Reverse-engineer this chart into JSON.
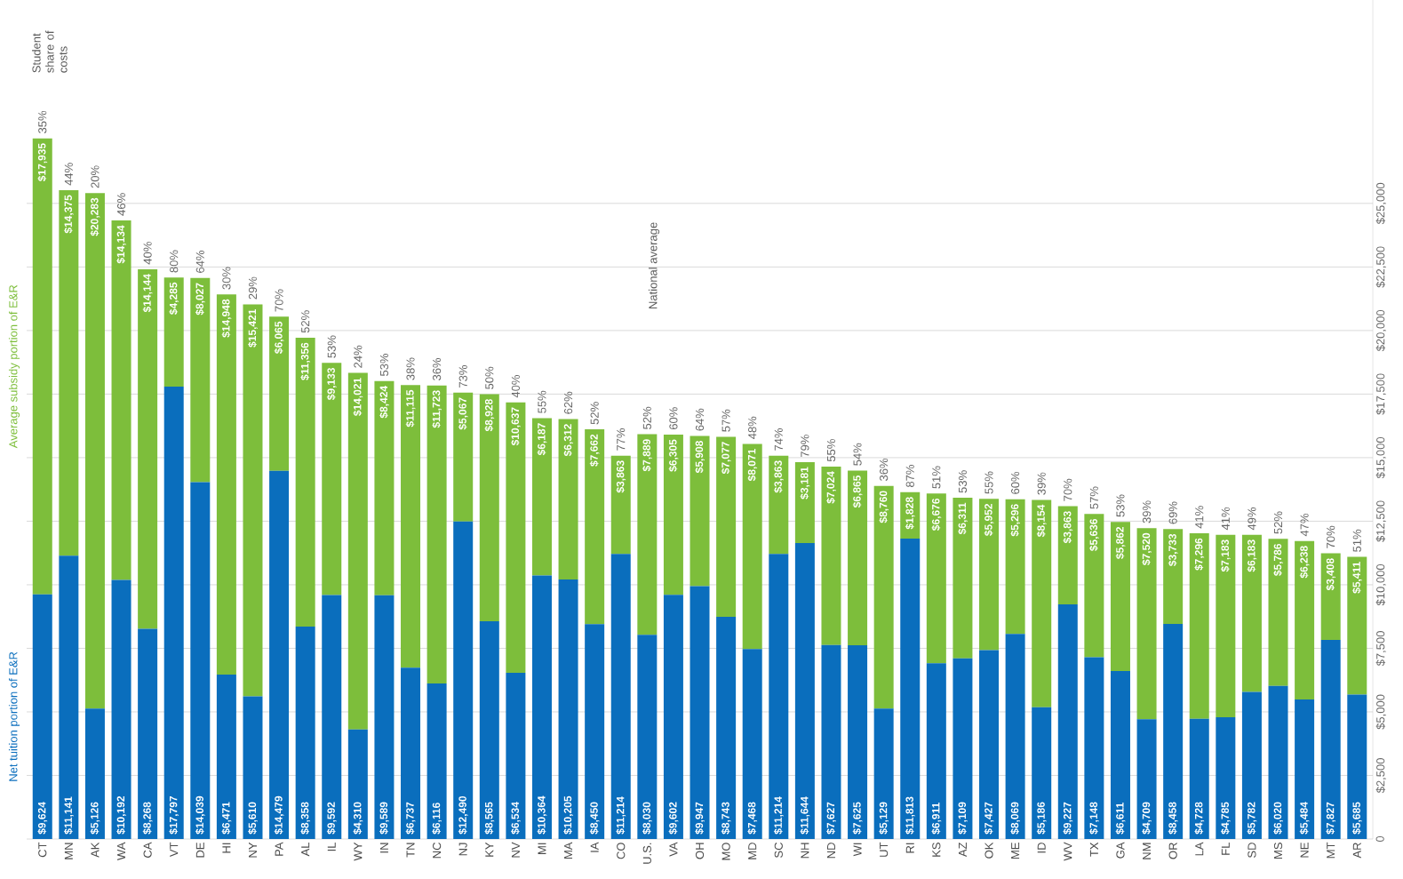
{
  "chart_data": {
    "type": "bar",
    "stacked": true,
    "grid": "y",
    "categories": [
      "CT",
      "MN",
      "AK",
      "WA",
      "CA",
      "VT",
      "DE",
      "HI",
      "NY",
      "PA",
      "AL",
      "IL",
      "WY",
      "IN",
      "TN",
      "NC",
      "NJ",
      "KY",
      "NV",
      "MI",
      "MA",
      "IA",
      "CO",
      "U.S.",
      "VA",
      "OH",
      "MO",
      "MD",
      "SC",
      "NH",
      "ND",
      "WI",
      "UT",
      "RI",
      "KS",
      "AZ",
      "OK",
      "ME",
      "ID",
      "WV",
      "TX",
      "GA",
      "NM",
      "OR",
      "LA",
      "FL",
      "SD",
      "MS",
      "NE",
      "MT",
      "AR"
    ],
    "series": [
      {
        "name": "Net tuition portion of E&R",
        "color": "#0a6ebd",
        "values": [
          9624,
          11141,
          5126,
          10192,
          8268,
          17797,
          14039,
          6471,
          5610,
          14479,
          8358,
          9592,
          4310,
          9589,
          6737,
          6116,
          12490,
          8565,
          6534,
          10364,
          10205,
          8450,
          11214,
          8030,
          9602,
          9947,
          8743,
          7468,
          11214,
          11644,
          7627,
          7625,
          5129,
          11813,
          6911,
          7109,
          7427,
          8069,
          5186,
          9227,
          7148,
          6611,
          4709,
          8458,
          4728,
          4785,
          5782,
          6020,
          5484,
          7827,
          5685
        ],
        "value_labels": [
          "$9,624",
          "$11,141",
          "$5,126",
          "$10,192",
          "$8,268",
          "$17,797",
          "$14,039",
          "$6,471",
          "$5,610",
          "$14,479",
          "$8,358",
          "$9,592",
          "$4,310",
          "$9,589",
          "$6,737",
          "$6,116",
          "$12,490",
          "$8,565",
          "$6,534",
          "$10,364",
          "$10,205",
          "$8,450",
          "$11,214",
          "$8,030",
          "$9,602",
          "$9,947",
          "$8,743",
          "$7,468",
          "$11,214",
          "$11,644",
          "$7,627",
          "$7,625",
          "$5,129",
          "$11,813",
          "$6,911",
          "$7,109",
          "$7,427",
          "$8,069",
          "$5,186",
          "$9,227",
          "$7,148",
          "$6,611",
          "$4,709",
          "$8,458",
          "$4,728",
          "$4,785",
          "$5,782",
          "$6,020",
          "$5,484",
          "$7,827",
          "$5,685"
        ]
      },
      {
        "name": "Average subsidy portion of E&R",
        "color": "#7dbe3b",
        "values": [
          17935,
          14375,
          20283,
          14134,
          14144,
          4285,
          8027,
          14948,
          15421,
          6065,
          11356,
          9133,
          14021,
          8424,
          11115,
          11723,
          5067,
          8928,
          10637,
          6187,
          6312,
          7662,
          3863,
          7889,
          6305,
          5908,
          7077,
          8071,
          3863,
          3181,
          7024,
          6865,
          8760,
          1828,
          6676,
          6311,
          5952,
          5296,
          8154,
          3863,
          5636,
          5862,
          7520,
          3733,
          7296,
          7183,
          6183,
          5786,
          6238,
          3408,
          5411
        ],
        "value_labels": [
          "$17,935",
          "$14,375",
          "$20,283",
          "$14,134",
          "$14,144",
          "$4,285",
          "$8,027",
          "$14,948",
          "$15,421",
          "$6,065",
          "$11,356",
          "$9,133",
          "$14,021",
          "$8,424",
          "$11,115",
          "$11,723",
          "$5,067",
          "$8,928",
          "$10,637",
          "$6,187",
          "$6,312",
          "$7,662",
          "$3,863",
          "$7,889",
          "$6,305",
          "$5,908",
          "$7,077",
          "$8,071",
          "$3,863",
          "$3,181",
          "$7,024",
          "$6,865",
          "$8,760",
          "$1,828",
          "$6,676",
          "$6,311",
          "$5,952",
          "$5,296",
          "$8,154",
          "$3,863",
          "$5,636",
          "$5,862",
          "$7,520",
          "$3,733",
          "$7,296",
          "$7,183",
          "$6,183",
          "$5,786",
          "$6,238",
          "$3,408",
          "$5,411"
        ]
      }
    ],
    "ylim": [
      0,
      33000
    ],
    "yticks": [
      0,
      {
        "value": 2500,
        "label": "$2,500"
      },
      {
        "value": 5000,
        "label": "$5,000"
      },
      {
        "value": 7500,
        "label": "$7,500"
      },
      {
        "value": 10000,
        "label": "$10,000"
      },
      {
        "value": 12500,
        "label": "$12,500"
      },
      {
        "value": 15000,
        "label": "$15,000"
      },
      {
        "value": 17500,
        "label": "$17,500"
      },
      {
        "value": 20000,
        "label": "$20,000"
      },
      {
        "value": 22500,
        "label": "$22,500"
      },
      {
        "value": 25000,
        "label": "$25,000"
      }
    ],
    "annotations": [
      "Student share of costs",
      "National average",
      {
        "text": "35%",
        "x": "CT",
        "y": 27559
      },
      {
        "text": "44%",
        "x": "MN",
        "y": 25516
      },
      {
        "text": "20%",
        "x": "AK",
        "y": 25409
      },
      {
        "text": "46%",
        "x": "WA",
        "y": 24326
      },
      {
        "text": "40%",
        "x": "CA",
        "y": 22412
      },
      {
        "text": "80%",
        "x": "VT",
        "y": 22082
      },
      {
        "text": "64%",
        "x": "DE",
        "y": 22066
      },
      {
        "text": "30%",
        "x": "HI",
        "y": 21419
      },
      {
        "text": "29%",
        "x": "NY",
        "y": 21031
      },
      {
        "text": "70%",
        "x": "PA",
        "y": 20544
      },
      {
        "text": "52%",
        "x": "AL",
        "y": 19714
      },
      {
        "text": "53%",
        "x": "IL",
        "y": 18725
      },
      {
        "text": "24%",
        "x": "WY",
        "y": 18331
      },
      {
        "text": "53%",
        "x": "IN",
        "y": 18013
      },
      {
        "text": "38%",
        "x": "TN",
        "y": 17852
      },
      {
        "text": "36%",
        "x": "NC",
        "y": 17839
      },
      {
        "text": "73%",
        "x": "NJ",
        "y": 17557
      },
      {
        "text": "50%",
        "x": "KY",
        "y": 17493
      },
      {
        "text": "40%",
        "x": "NV",
        "y": 17171
      },
      {
        "text": "55%",
        "x": "MI",
        "y": 16551
      },
      {
        "text": "62%",
        "x": "MA",
        "y": 16517
      },
      {
        "text": "52%",
        "x": "IA",
        "y": 16112
      },
      {
        "text": "77%",
        "x": "CO",
        "y": 15077
      },
      {
        "text": "52%",
        "x": "U.S.",
        "y": 15919
      },
      {
        "text": "60%",
        "x": "VA",
        "y": 15907
      },
      {
        "text": "64%",
        "x": "OH",
        "y": 15855
      },
      {
        "text": "57%",
        "x": "MO",
        "y": 15820
      },
      {
        "text": "48%",
        "x": "MD",
        "y": 15539
      },
      {
        "text": "74%",
        "x": "SC",
        "y": 15077
      },
      {
        "text": "79%",
        "x": "NH",
        "y": 14825
      },
      {
        "text": "55%",
        "x": "ND",
        "y": 14651
      },
      {
        "text": "54%",
        "x": "WI",
        "y": 14490
      },
      {
        "text": "36%",
        "x": "UT",
        "y": 13889
      },
      {
        "text": "87%",
        "x": "RI",
        "y": 13641
      },
      {
        "text": "51%",
        "x": "KS",
        "y": 13587
      },
      {
        "text": "53%",
        "x": "AZ",
        "y": 13420
      },
      {
        "text": "55%",
        "x": "OK",
        "y": 13379
      },
      {
        "text": "60%",
        "x": "ME",
        "y": 13365
      },
      {
        "text": "39%",
        "x": "ID",
        "y": 13340
      },
      {
        "text": "70%",
        "x": "WV",
        "y": 13090
      },
      {
        "text": "57%",
        "x": "TX",
        "y": 12784
      },
      {
        "text": "53%",
        "x": "GA",
        "y": 12473
      },
      {
        "text": "39%",
        "x": "NM",
        "y": 12229
      },
      {
        "text": "69%",
        "x": "OR",
        "y": 12191
      },
      {
        "text": "41%",
        "x": "LA",
        "y": 12024
      },
      {
        "text": "41%",
        "x": "FL",
        "y": 11968
      },
      {
        "text": "49%",
        "x": "SD",
        "y": 11965
      },
      {
        "text": "52%",
        "x": "MS",
        "y": 11806
      },
      {
        "text": "47%",
        "x": "NE",
        "y": 11722
      },
      {
        "text": "70%",
        "x": "MT",
        "y": 11235
      },
      {
        "text": "51%",
        "x": "AR",
        "y": 11096
      }
    ]
  }
}
